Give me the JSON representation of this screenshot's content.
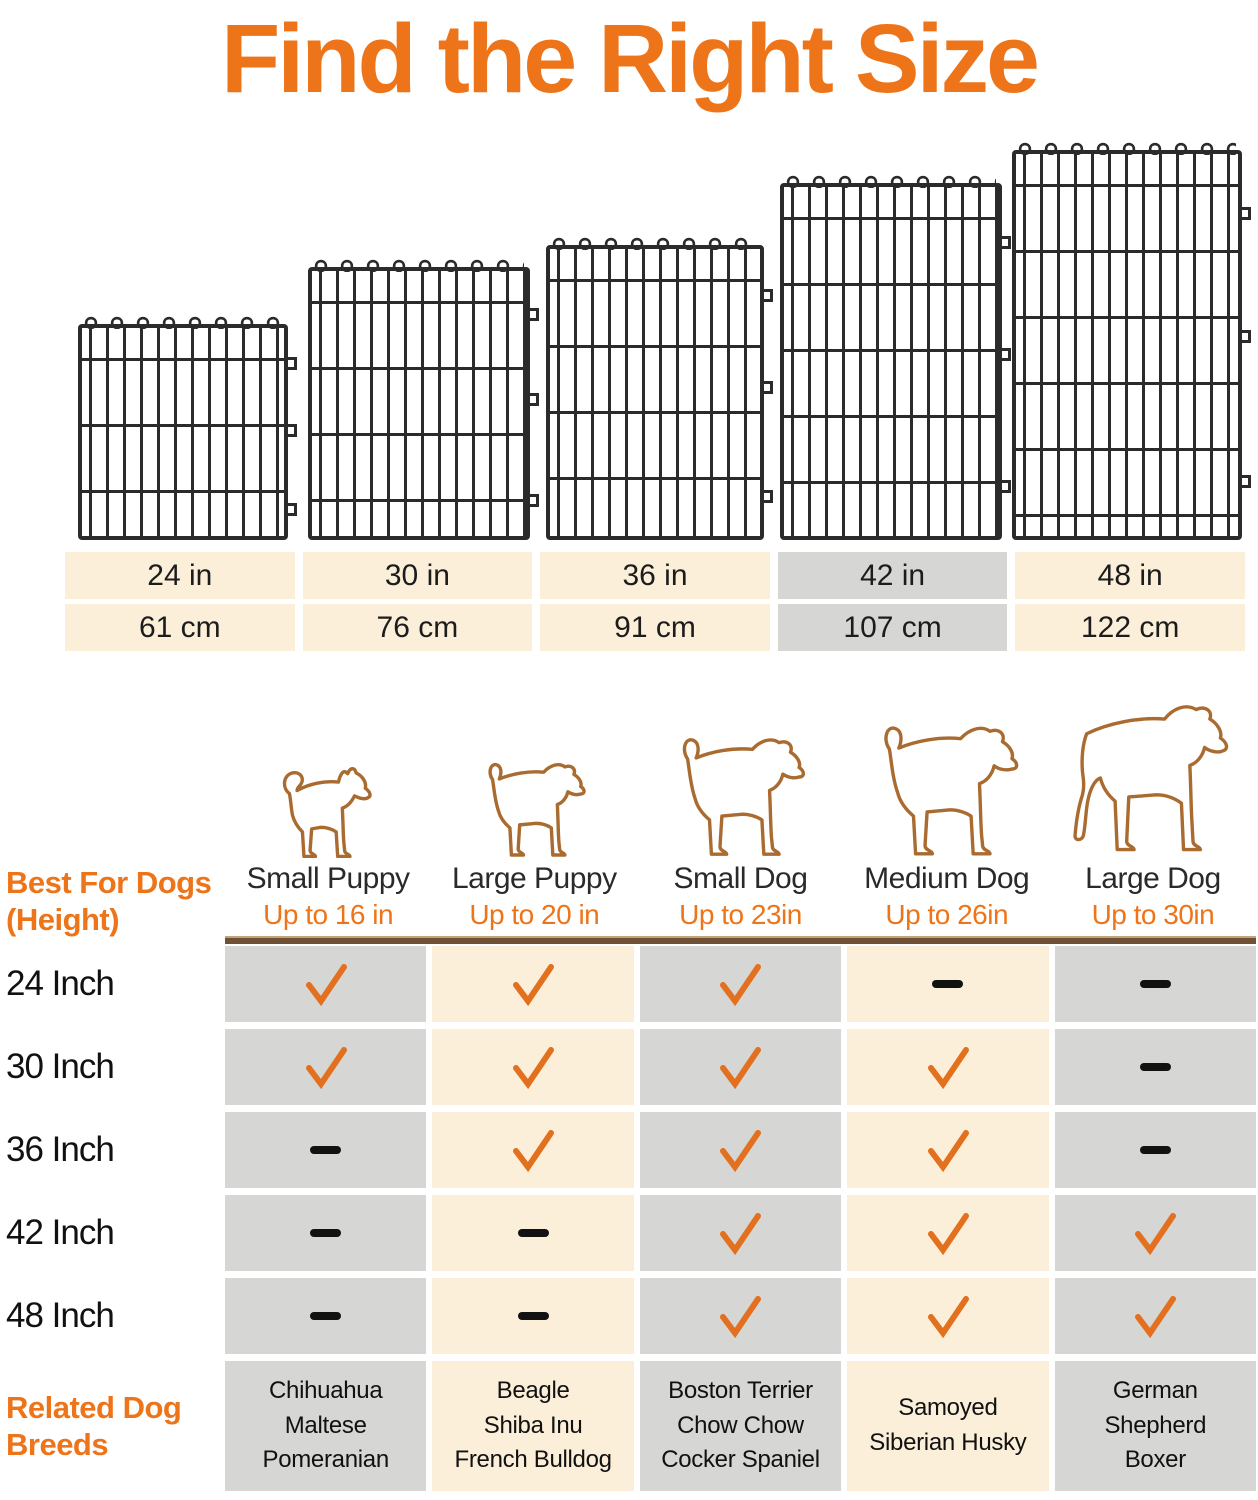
{
  "title": "Find the Right Size",
  "colors": {
    "accent_orange": "#EE7419",
    "check_orange": "#E2701E",
    "cell_beige": "#FCEFD9",
    "cell_gray": "#D6D6D5",
    "divider_brown": "#6F5136",
    "wire_black": "#2B2B2B",
    "dog_outline_brown": "#A96B2F"
  },
  "panels": [
    {
      "id": "24",
      "inches": "24 in",
      "cm": "61 cm",
      "highlight": false
    },
    {
      "id": "30",
      "inches": "30 in",
      "cm": "76 cm",
      "highlight": false
    },
    {
      "id": "36",
      "inches": "36 in",
      "cm": "91 cm",
      "highlight": false
    },
    {
      "id": "42",
      "inches": "42 in",
      "cm": "107 cm",
      "highlight": true
    },
    {
      "id": "48",
      "inches": "48 in",
      "cm": "122 cm",
      "highlight": false
    }
  ],
  "dogs": [
    {
      "name": "Small Puppy",
      "max_height": "Up to 16 in",
      "breeds": [
        "Chihuahua",
        "Maltese",
        "Pomeranian"
      ]
    },
    {
      "name": "Large Puppy",
      "max_height": "Up to 20 in",
      "breeds": [
        "Beagle",
        "Shiba Inu",
        "French Bulldog"
      ]
    },
    {
      "name": "Small Dog",
      "max_height": "Up to 23in",
      "breeds": [
        "Boston Terrier",
        "Chow Chow",
        "Cocker Spaniel"
      ]
    },
    {
      "name": "Medium Dog",
      "max_height": "Up to 26in",
      "breeds": [
        "Samoyed",
        "Siberian Husky"
      ]
    },
    {
      "name": "Large Dog",
      "max_height": "Up to 30in",
      "breeds": [
        "German Shepherd",
        "Boxer"
      ]
    }
  ],
  "matrix": {
    "row_header": [
      "Best For Dogs",
      "(Height)"
    ],
    "breeds_label": [
      "Related Dog",
      "Breeds"
    ],
    "rows": [
      {
        "label": "24 Inch",
        "marks": [
          "check",
          "check",
          "check",
          "dash",
          "dash"
        ]
      },
      {
        "label": "30 Inch",
        "marks": [
          "check",
          "check",
          "check",
          "check",
          "dash"
        ]
      },
      {
        "label": "36 Inch",
        "marks": [
          "dash",
          "check",
          "check",
          "check",
          "dash"
        ]
      },
      {
        "label": "42 Inch",
        "marks": [
          "dash",
          "dash",
          "check",
          "check",
          "check"
        ]
      },
      {
        "label": "48 Inch",
        "marks": [
          "dash",
          "dash",
          "check",
          "check",
          "check"
        ]
      }
    ]
  }
}
